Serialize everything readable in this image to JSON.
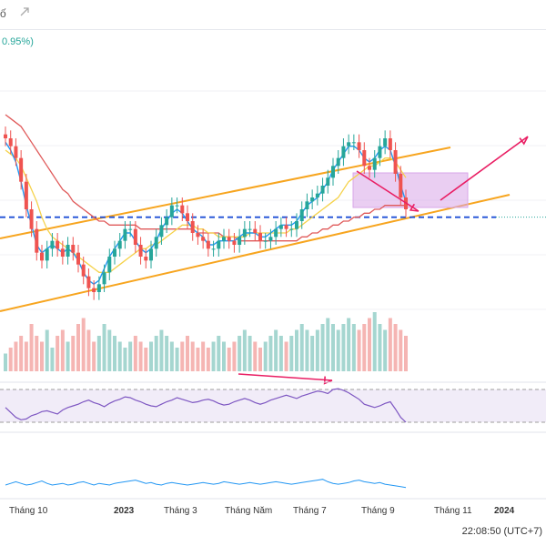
{
  "header": {
    "title_fragment": "ố",
    "share_icon": "share-icon",
    "change_text": "0.95%)"
  },
  "timestamp": "22:08:50 (UTC+7)",
  "x_axis_labels": [
    {
      "text": "Tháng 10",
      "bold": false
    },
    {
      "text": "2023",
      "bold": true
    },
    {
      "text": "Tháng 3",
      "bold": false
    },
    {
      "text": "Tháng Năm",
      "bold": false
    },
    {
      "text": "Tháng 7",
      "bold": false
    },
    {
      "text": "Tháng 9",
      "bold": false
    },
    {
      "text": "Tháng 11",
      "bold": false
    },
    {
      "text": "2024",
      "bold": true
    }
  ],
  "colors": {
    "up": "#26a69a",
    "down": "#ef5350",
    "channel": "#f7a51f",
    "ma_short": "#2196f3",
    "ma_mid": "#f5d24b",
    "ma_long": "#e05a5a",
    "rsi": "#7e57c2",
    "annotation": "#e91e63",
    "zone": "#d8a6e8",
    "level": "#1e4fd6",
    "volume_up": "#a5d6d0",
    "volume_down": "#f5b5b3"
  },
  "chart_data": {
    "type": "candlestick",
    "x_categories": [
      "Tháng 10",
      "2023",
      "Tháng 3",
      "Tháng Năm",
      "Tháng 7",
      "Tháng 9",
      "Tháng 11",
      "2024"
    ],
    "price_series": [
      78,
      76,
      73,
      67,
      60,
      55,
      49,
      47,
      50,
      52,
      50,
      48,
      51,
      49,
      46,
      43,
      40,
      39,
      41,
      44,
      48,
      50,
      52,
      55,
      55,
      51,
      48,
      47,
      50,
      53,
      56,
      58,
      61,
      61,
      59,
      57,
      54,
      53,
      52,
      50,
      50,
      52,
      53,
      52,
      51,
      53,
      55,
      55,
      54,
      52,
      52,
      53,
      55,
      56,
      55,
      55,
      57,
      60,
      62,
      63,
      64,
      66,
      68,
      71,
      73,
      76,
      77,
      77,
      75,
      71,
      70,
      73,
      76,
      78,
      75,
      69,
      63,
      60
    ],
    "sma_short": [
      77,
      75,
      72,
      67,
      61,
      56,
      51,
      49,
      50,
      51,
      50,
      49,
      50,
      49,
      47,
      44,
      42,
      41,
      42,
      45,
      48,
      50,
      52,
      54,
      54,
      52,
      50,
      49,
      50,
      52,
      55,
      57,
      59,
      60,
      59,
      57,
      55,
      54,
      53,
      51,
      51,
      52,
      52,
      52,
      52,
      53,
      54,
      54,
      54,
      53,
      53,
      54,
      55,
      56,
      56,
      56,
      57,
      59,
      61,
      62,
      63,
      65,
      67,
      70,
      72,
      74,
      76,
      76,
      75,
      73,
      72,
      73,
      75,
      76,
      75,
      71,
      66,
      62
    ],
    "sma_mid": [
      75,
      74,
      73,
      71,
      68,
      65,
      62,
      58,
      55,
      53,
      52,
      51,
      50,
      49,
      48,
      47,
      46,
      45,
      44,
      44,
      44,
      45,
      46,
      47,
      48,
      49,
      50,
      50,
      51,
      51,
      52,
      53,
      54,
      55,
      56,
      56,
      56,
      55,
      55,
      54,
      54,
      53,
      53,
      53,
      53,
      53,
      53,
      54,
      54,
      54,
      54,
      54,
      54,
      54,
      54,
      55,
      55,
      56,
      57,
      58,
      59,
      60,
      61,
      62,
      63,
      65,
      67,
      68,
      69,
      70,
      71,
      71,
      72,
      73,
      73,
      72,
      70,
      68
    ],
    "sma_long": [
      84,
      83,
      82,
      81,
      79,
      77,
      75,
      73,
      71,
      69,
      67,
      65,
      64,
      62,
      61,
      60,
      59,
      58,
      57,
      57,
      56,
      56,
      56,
      56,
      56,
      56,
      55,
      55,
      55,
      55,
      55,
      55,
      55,
      55,
      55,
      55,
      55,
      54,
      54,
      54,
      54,
      54,
      53,
      53,
      53,
      52,
      52,
      52,
      52,
      52,
      52,
      52,
      52,
      52,
      52,
      52,
      52,
      53,
      53,
      54,
      54,
      55,
      55,
      56,
      56,
      57,
      57,
      58,
      58,
      59,
      59,
      60,
      60,
      61,
      61,
      61,
      61,
      61
    ],
    "volume": [
      3,
      4,
      5,
      6,
      5,
      8,
      6,
      5,
      7,
      4,
      6,
      7,
      5,
      6,
      8,
      9,
      7,
      5,
      6,
      8,
      7,
      6,
      5,
      4,
      5,
      6,
      5,
      4,
      5,
      6,
      7,
      6,
      5,
      4,
      5,
      6,
      5,
      4,
      5,
      4,
      5,
      6,
      5,
      4,
      5,
      6,
      7,
      6,
      5,
      4,
      5,
      6,
      7,
      6,
      5,
      6,
      7,
      8,
      7,
      6,
      7,
      8,
      9,
      8,
      7,
      8,
      9,
      8,
      7,
      8,
      9,
      10,
      8,
      7,
      9,
      8,
      7,
      6
    ],
    "rsi": [
      48,
      42,
      36,
      33,
      34,
      38,
      40,
      43,
      44,
      42,
      40,
      45,
      48,
      50,
      52,
      55,
      57,
      54,
      52,
      49,
      53,
      56,
      58,
      61,
      60,
      57,
      55,
      52,
      50,
      49,
      52,
      55,
      57,
      60,
      58,
      56,
      54,
      55,
      57,
      58,
      56,
      53,
      51,
      52,
      55,
      57,
      59,
      57,
      54,
      52,
      54,
      57,
      59,
      61,
      63,
      61,
      59,
      62,
      64,
      66,
      68,
      67,
      65,
      70,
      71,
      69,
      66,
      62,
      58,
      52,
      50,
      48,
      50,
      53,
      55,
      46,
      36,
      30
    ],
    "rsi_bands": [
      70,
      30
    ],
    "dashed_level": 58,
    "bottom_indicator": [
      10,
      12,
      14,
      12,
      10,
      11,
      13,
      15,
      12,
      10,
      11,
      12,
      10,
      11,
      13,
      14,
      12,
      10,
      12,
      11,
      10,
      12,
      13,
      14,
      15,
      16,
      14,
      12,
      13,
      11,
      10,
      12,
      13,
      12,
      11,
      10,
      11,
      12,
      13,
      12,
      11,
      12,
      14,
      13,
      12,
      11,
      12,
      13,
      12,
      11,
      12,
      13,
      14,
      13,
      12,
      11,
      12,
      13,
      14,
      15,
      16,
      17,
      14,
      12,
      11,
      12,
      13,
      15,
      16,
      14,
      13,
      12,
      13,
      11,
      10,
      9,
      8,
      7
    ]
  }
}
